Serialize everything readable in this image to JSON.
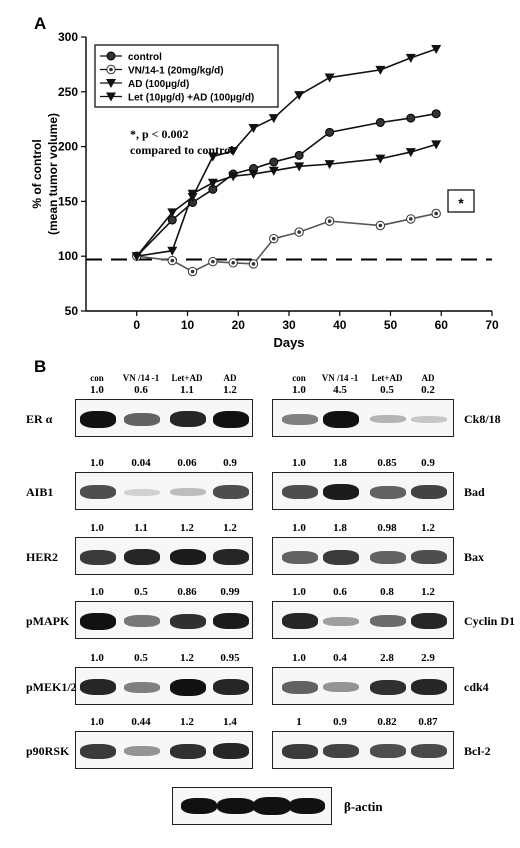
{
  "panel_a_label": "A",
  "panel_b_label": "B",
  "chart_data": {
    "type": "line",
    "xlabel": "Days",
    "ylabel_line1": "% of control",
    "ylabel_line2": "(mean tumor volume)",
    "xlim": [
      -10,
      70
    ],
    "ylim": [
      50,
      300
    ],
    "xticks": [
      0,
      10,
      20,
      30,
      40,
      50,
      60,
      70
    ],
    "yticks": [
      50,
      100,
      150,
      200,
      250,
      300
    ],
    "reference_line": 97,
    "annotation_line1": "*, p < 0.002",
    "annotation_line2": "compared to control",
    "star_box_label": "*",
    "legend_position": "top-left",
    "series": [
      {
        "name": "control",
        "marker": "circle",
        "x": [
          0,
          7,
          11,
          15,
          19,
          23,
          27,
          32,
          38,
          48,
          54,
          59
        ],
        "values": [
          100,
          133,
          149,
          161,
          175,
          180,
          186,
          192,
          213,
          222,
          226,
          230
        ]
      },
      {
        "name": "VN/14-1 (20mg/kg/d)",
        "marker": "target",
        "x": [
          0,
          7,
          11,
          15,
          19,
          23,
          27,
          32,
          38,
          48,
          54,
          59
        ],
        "values": [
          100,
          96,
          86,
          95,
          94,
          93,
          116,
          122,
          132,
          128,
          134,
          139
        ]
      },
      {
        "name": "AD (100µg/d)",
        "marker": "triangle-down",
        "x": [
          0,
          7,
          11,
          15,
          19,
          23,
          27,
          32,
          38,
          48,
          54,
          59
        ],
        "values": [
          100,
          105,
          157,
          167,
          173,
          175,
          178,
          182,
          184,
          189,
          195,
          202
        ]
      },
      {
        "name": "Let (10µg/d) +AD (100µg/d)",
        "marker": "triangle-down",
        "x": [
          0,
          7,
          11,
          15,
          19,
          23,
          27,
          32,
          38,
          48,
          54,
          59
        ],
        "values": [
          100,
          140,
          154,
          191,
          196,
          217,
          226,
          247,
          263,
          270,
          281,
          289
        ]
      }
    ]
  },
  "blots": {
    "lane_headers": [
      "con",
      "VN /14 -1",
      "Let+AD",
      "AD"
    ],
    "left": [
      {
        "name": "ER α",
        "values": [
          "1.0",
          "0.6",
          "1.1",
          "1.2"
        ],
        "intensity": [
          1.0,
          0.6,
          0.9,
          1.0
        ]
      },
      {
        "name": "AIB1",
        "values": [
          "1.0",
          "0.04",
          "0.06",
          "0.9"
        ],
        "intensity": [
          0.7,
          0.05,
          0.15,
          0.7
        ]
      },
      {
        "name": "HER2",
        "values": [
          "1.0",
          "1.1",
          "1.2",
          "1.2"
        ],
        "intensity": [
          0.8,
          0.9,
          0.95,
          0.9
        ]
      },
      {
        "name": "pMAPK",
        "values": [
          "1.0",
          "0.5",
          "0.86",
          "0.99"
        ],
        "intensity": [
          1.0,
          0.5,
          0.85,
          0.95
        ]
      },
      {
        "name": "pMEK1/2",
        "values": [
          "1.0",
          "0.5",
          "1.2",
          "0.95"
        ],
        "intensity": [
          0.9,
          0.45,
          1.0,
          0.9
        ]
      },
      {
        "name": "p90RSK",
        "values": [
          "1.0",
          "0.44",
          "1.2",
          "1.4"
        ],
        "intensity": [
          0.8,
          0.35,
          0.85,
          0.9
        ]
      }
    ],
    "right": [
      {
        "name": "Ck8/18",
        "values": [
          "1.0",
          "4.5",
          "0.5",
          "0.2"
        ],
        "intensity": [
          0.45,
          1.0,
          0.2,
          0.1
        ]
      },
      {
        "name": "Bad",
        "values": [
          "1.0",
          "1.8",
          "0.85",
          "0.9"
        ],
        "intensity": [
          0.7,
          0.95,
          0.6,
          0.75
        ]
      },
      {
        "name": "Bax",
        "values": [
          "1.0",
          "1.8",
          "0.98",
          "1.2"
        ],
        "intensity": [
          0.6,
          0.8,
          0.6,
          0.7
        ]
      },
      {
        "name": "Cyclin D1",
        "values": [
          "1.0",
          "0.6",
          "0.8",
          "1.2"
        ],
        "intensity": [
          0.9,
          0.3,
          0.55,
          0.9
        ]
      },
      {
        "name": "cdk4",
        "values": [
          "1.0",
          "0.4",
          "2.8",
          "2.9"
        ],
        "intensity": [
          0.6,
          0.35,
          0.85,
          0.9
        ]
      },
      {
        "name": "Bcl-2",
        "values": [
          "1",
          "0.9",
          "0.82",
          "0.87"
        ],
        "intensity": [
          0.8,
          0.75,
          0.7,
          0.72
        ]
      }
    ],
    "loading_control": "β-actin"
  }
}
